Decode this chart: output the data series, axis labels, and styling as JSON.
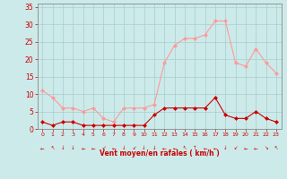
{
  "hours": [
    0,
    1,
    2,
    3,
    4,
    5,
    6,
    7,
    8,
    9,
    10,
    11,
    12,
    13,
    14,
    15,
    16,
    17,
    18,
    19,
    20,
    21,
    22,
    23
  ],
  "wind_avg": [
    2,
    1,
    2,
    2,
    1,
    1,
    1,
    1,
    1,
    1,
    1,
    4,
    6,
    6,
    6,
    6,
    6,
    9,
    4,
    3,
    3,
    5,
    3,
    2
  ],
  "wind_gust": [
    11,
    9,
    6,
    6,
    5,
    6,
    3,
    2,
    6,
    6,
    6,
    7,
    19,
    24,
    26,
    26,
    27,
    31,
    31,
    19,
    18,
    23,
    19,
    16
  ],
  "bg_color": "#cceaea",
  "grid_color": "#aacccc",
  "line_avg_color": "#cc0000",
  "line_gust_color": "#ff9999",
  "xlabel": "Vent moyen/en rafales ( km/h )",
  "xlabel_color": "#cc0000",
  "tick_color": "#cc0000",
  "spine_color": "#888888",
  "ylim": [
    0,
    36
  ],
  "yticks": [
    0,
    5,
    10,
    15,
    20,
    25,
    30,
    35
  ],
  "xlim": [
    -0.5,
    23.5
  ],
  "marker_size": 2.5,
  "wind_dirs": [
    "←",
    "↖",
    "↓",
    "↓",
    "←",
    "←",
    "↙",
    "←",
    "↓",
    "↙",
    "↓",
    "↓",
    "←",
    "←",
    "↖",
    "↑",
    "←",
    "←",
    "↓",
    "↙",
    "←",
    "←",
    "↘",
    "↖"
  ]
}
